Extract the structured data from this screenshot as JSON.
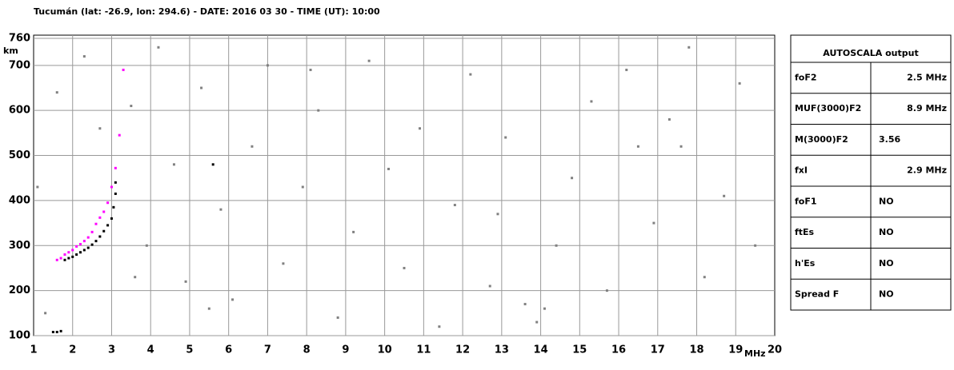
{
  "chart_data": {
    "type": "scatter",
    "title": "Tucumán (lat: -26.9, lon: 294.6) - DATE: 2016 03 30 - TIME (UT): 10:00",
    "xlabel": "MHz",
    "ylabel": "km",
    "xlim": [
      1,
      20
    ],
    "xticks": [
      1,
      2,
      3,
      4,
      5,
      6,
      7,
      8,
      9,
      10,
      11,
      12,
      13,
      14,
      15,
      16,
      17,
      18,
      19,
      20
    ],
    "ylim": [
      100,
      760
    ],
    "yticks": [
      100,
      200,
      300,
      400,
      500,
      600,
      700,
      760
    ],
    "grid": true,
    "series": [
      {
        "color": "#808080",
        "x": [
          1.3,
          1.6,
          2.3,
          2.7,
          3.5,
          3.9,
          4.2,
          4.6,
          4.9,
          5.3,
          5.8,
          6.1,
          6.6,
          7.0,
          7.4,
          7.9,
          8.3,
          8.8,
          9.2,
          9.6,
          10.1,
          10.5,
          10.9,
          11.4,
          11.8,
          12.2,
          12.7,
          13.1,
          13.6,
          13.9,
          14.1,
          14.4,
          14.8,
          15.3,
          15.7,
          16.2,
          16.5,
          16.9,
          17.3,
          17.8,
          18.2,
          18.7,
          19.1,
          19.5,
          1.1,
          3.6,
          5.5,
          8.1,
          12.9,
          17.6
        ],
        "values": [
          150,
          640,
          720,
          560,
          610,
          300,
          740,
          480,
          220,
          650,
          380,
          180,
          520,
          700,
          260,
          430,
          600,
          140,
          330,
          710,
          470,
          250,
          560,
          120,
          390,
          680,
          210,
          540,
          170,
          130,
          160,
          300,
          450,
          620,
          200,
          690,
          520,
          350,
          580,
          740,
          230,
          410,
          660,
          300,
          430,
          230,
          160,
          690,
          370,
          520
        ]
      },
      {
        "color": "#000000",
        "x": [
          1.5,
          1.6,
          1.7,
          1.8,
          1.9,
          2.0,
          2.1,
          2.2,
          2.3,
          2.4,
          2.5,
          2.6,
          2.7,
          2.8,
          2.9,
          3.0,
          3.05,
          3.1,
          3.1,
          5.6
        ],
        "values": [
          108,
          108,
          110,
          268,
          272,
          275,
          280,
          285,
          290,
          295,
          302,
          310,
          320,
          332,
          345,
          360,
          385,
          415,
          440,
          480
        ]
      },
      {
        "color": "#ff00ff",
        "x": [
          1.6,
          1.7,
          1.8,
          1.9,
          2.0,
          2.1,
          2.2,
          2.3,
          2.4,
          2.5,
          2.6,
          2.7,
          2.8,
          2.9,
          3.0,
          3.1,
          3.2,
          3.3
        ],
        "values": [
          268,
          272,
          280,
          285,
          290,
          298,
          303,
          310,
          318,
          330,
          348,
          362,
          375,
          395,
          430,
          472,
          545,
          690
        ]
      }
    ]
  },
  "table": {
    "title": "AUTOSCALA output",
    "rows": [
      [
        "foF2",
        "2.5 MHz"
      ],
      [
        "MUF(3000)F2",
        "8.9 MHz"
      ],
      [
        "M(3000)F2",
        "3.56"
      ],
      [
        "fxI",
        "2.9 MHz"
      ],
      [
        "foF1",
        "NO"
      ],
      [
        "ftEs",
        "NO"
      ],
      [
        "h'Es",
        "NO"
      ],
      [
        "Spread F",
        "NO"
      ]
    ]
  }
}
